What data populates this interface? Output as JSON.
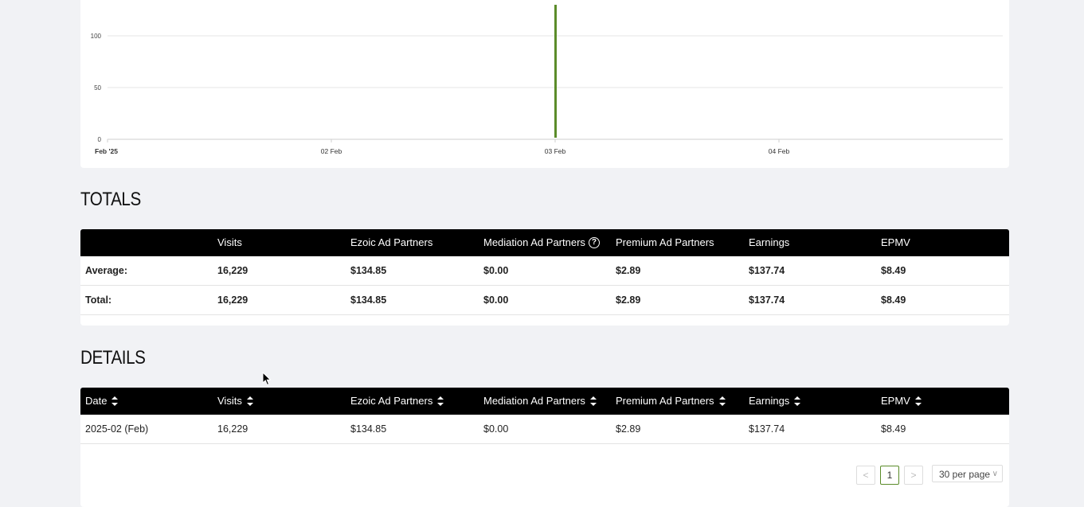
{
  "chart_data": {
    "type": "bar",
    "y_ticks": [
      "0",
      "50",
      "100"
    ],
    "x_ticks": [
      "Feb '25",
      "02 Feb",
      "03 Feb",
      "04 Feb"
    ],
    "x": [
      "2025-02-03"
    ],
    "values": [
      130
    ],
    "ylim": [
      0,
      135
    ],
    "grid": true,
    "bar_color": "#5b8c2a"
  },
  "totals": {
    "title": "TOTALS",
    "headers": [
      "",
      "Visits",
      "Ezoic Ad Partners",
      "Mediation Ad Partners",
      "Premium Ad Partners",
      "Earnings",
      "EPMV"
    ],
    "rows": [
      [
        "Average:",
        "16,229",
        "$134.85",
        "$0.00",
        "$2.89",
        "$137.74",
        "$8.49"
      ],
      [
        "Total:",
        "16,229",
        "$134.85",
        "$0.00",
        "$2.89",
        "$137.74",
        "$8.49"
      ]
    ]
  },
  "details": {
    "title": "DETAILS",
    "headers": [
      "Date",
      "Visits",
      "Ezoic Ad Partners",
      "Mediation Ad Partners",
      "Premium Ad Partners",
      "Earnings",
      "EPMV"
    ],
    "rows": [
      [
        "2025-02 (Feb)",
        "16,229",
        "$134.85",
        "$0.00",
        "$2.89",
        "$137.74",
        "$8.49"
      ]
    ]
  },
  "pagination": {
    "prev": "<",
    "current": "1",
    "next": ">",
    "per_page": "30 per page"
  }
}
